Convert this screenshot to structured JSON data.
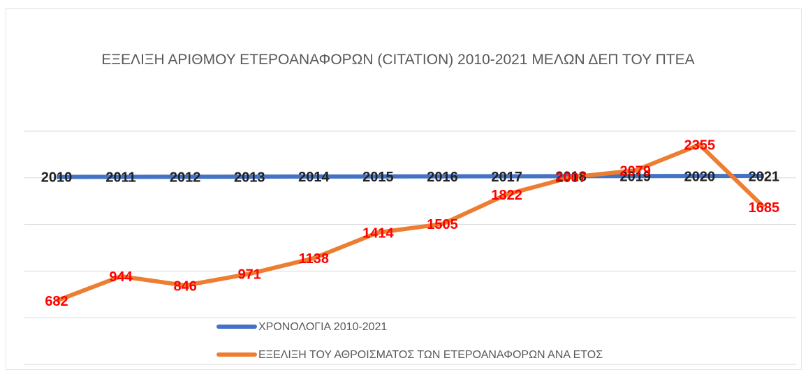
{
  "chart_data": {
    "type": "line",
    "title": "ΕΞΕΛΙΞΗ ΑΡΙΘΜΟΥ ΕΤΕΡΟΑΝΑΦΟΡΩΝ (CITATION) 2010-2021 ΜΕΛΩΝ ΔΕΠ ΤΟΥ ΠΤΕΑ",
    "series": [
      {
        "name": "ΧΡΟΝΟΛΟΓΙΑ 2010-2021",
        "color": "#4472c4",
        "label_color": "#222222",
        "values": [
          2010,
          2011,
          2012,
          2013,
          2014,
          2015,
          2016,
          2017,
          2018,
          2019,
          2020,
          2021
        ]
      },
      {
        "name": "ΕΞΕΛΙΞΗ ΤΟΥ ΑΘΡΟΙΣΜΑΤΟΣ ΤΩΝ ΕΤΕΡΟΑΝΑΦΟΡΩΝ ΑΝΑ ΕΤΟΣ",
        "color": "#ed7d31",
        "label_color": "#ff0000",
        "values": [
          682,
          944,
          846,
          971,
          1138,
          1414,
          1505,
          1822,
          2007,
          2079,
          2355,
          1685
        ]
      }
    ],
    "ylim": [
      0,
      2500
    ],
    "yticks": [
      0,
      500,
      1000,
      1500,
      2000,
      2500
    ],
    "grid": true,
    "legend": "bottom"
  }
}
